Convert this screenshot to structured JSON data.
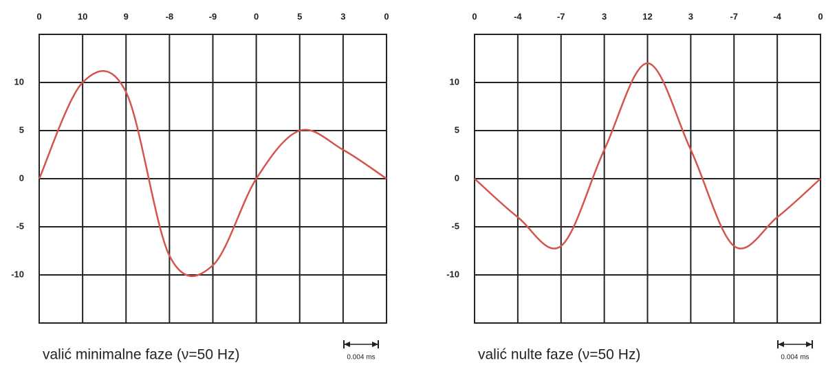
{
  "chart_data": [
    {
      "type": "line",
      "title": "valić minimalne faze (ν=50 Hz)",
      "annotation": "0.004 ms",
      "series": [
        {
          "color": "#d4544c",
          "values": [
            0,
            10,
            9,
            -8,
            -9,
            0,
            5,
            3,
            0
          ]
        }
      ],
      "ylim": [
        -15,
        15
      ],
      "yticks": [
        -10,
        -5,
        0,
        5,
        10
      ],
      "grid": true
    },
    {
      "type": "line",
      "title": "valić nulte faze (ν=50 Hz)",
      "annotation": "0.004 ms",
      "series": [
        {
          "color": "#d4544c",
          "values": [
            0,
            -4,
            -7,
            3,
            12,
            3,
            -7,
            -4,
            0
          ]
        }
      ],
      "ylim": [
        -15,
        15
      ],
      "yticks": [
        -10,
        -5,
        0,
        5,
        10
      ],
      "grid": true
    }
  ]
}
